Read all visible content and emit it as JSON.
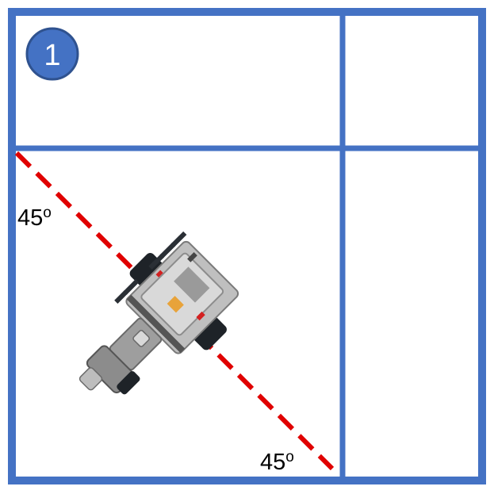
{
  "step": {
    "number": "1"
  },
  "angles": {
    "left_label": "45",
    "left_unit": "o",
    "bottom_label": "45",
    "bottom_unit": "o"
  },
  "colors": {
    "grid": "#4472c4",
    "badge_fill": "#4472c4",
    "badge_stroke": "#2f528f",
    "path_line": "#e00000"
  },
  "icons": {
    "robot": "lego-robot-icon"
  }
}
